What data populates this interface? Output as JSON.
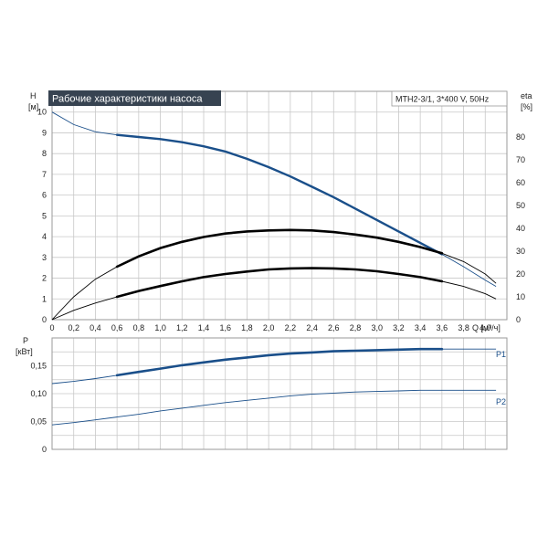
{
  "chart_data": [
    {
      "type": "line",
      "title": "Рабочие характеристики насоса",
      "model": "MTH2-3/1, 3*400 V, 50Hz",
      "ylabel_left": [
        "H",
        "[м]"
      ],
      "ylabel_right": [
        "eta",
        "[%]"
      ],
      "xlabel": "Q [м³/ч]",
      "xlim": [
        0,
        4.2
      ],
      "ylim": [
        0,
        11
      ],
      "y2lim": [
        0,
        100
      ],
      "x_ticks": [
        "0",
        "0,2",
        "0,4",
        "0,6",
        "0,8",
        "1,0",
        "1,2",
        "1,4",
        "1,6",
        "1,8",
        "2,0",
        "2,2",
        "2,4",
        "2,6",
        "2,8",
        "3,0",
        "3,2",
        "3,4",
        "3,6",
        "3,8",
        "4,0"
      ],
      "y_ticks": [
        "0",
        "1",
        "2",
        "3",
        "4",
        "5",
        "6",
        "7",
        "8",
        "9",
        "10"
      ],
      "y2_ticks": [
        "0",
        "10",
        "20",
        "30",
        "40",
        "50",
        "60",
        "70",
        "80"
      ],
      "series": [
        {
          "axis": "left",
          "style": "head",
          "color": "#1a4f8a",
          "bold_range": [
            0.6,
            3.6
          ],
          "x": [
            0,
            0.2,
            0.4,
            0.6,
            0.8,
            1.0,
            1.2,
            1.4,
            1.6,
            1.8,
            2.0,
            2.2,
            2.4,
            2.6,
            2.8,
            3.0,
            3.2,
            3.4,
            3.6,
            3.8,
            4.0,
            4.1
          ],
          "y": [
            10.0,
            9.4,
            9.05,
            8.9,
            8.8,
            8.7,
            8.55,
            8.35,
            8.1,
            7.75,
            7.35,
            6.9,
            6.4,
            5.9,
            5.35,
            4.8,
            4.25,
            3.7,
            3.15,
            2.55,
            1.9,
            1.6
          ]
        },
        {
          "axis": "left",
          "style": "black",
          "color": "#000000",
          "bold_range": [
            0.6,
            3.6
          ],
          "x": [
            0,
            0.2,
            0.4,
            0.6,
            0.8,
            1.0,
            1.2,
            1.4,
            1.6,
            1.8,
            2.0,
            2.2,
            2.4,
            2.6,
            2.8,
            3.0,
            3.2,
            3.4,
            3.6,
            3.8,
            4.0,
            4.1
          ],
          "y": [
            0.0,
            1.1,
            1.95,
            2.55,
            3.05,
            3.45,
            3.75,
            3.98,
            4.15,
            4.25,
            4.3,
            4.32,
            4.3,
            4.22,
            4.1,
            3.95,
            3.75,
            3.5,
            3.2,
            2.8,
            2.2,
            1.75
          ]
        },
        {
          "axis": "left",
          "style": "black",
          "color": "#000000",
          "bold_range": [
            0.6,
            3.6
          ],
          "x": [
            0,
            0.2,
            0.4,
            0.6,
            0.8,
            1.0,
            1.2,
            1.4,
            1.6,
            1.8,
            2.0,
            2.2,
            2.4,
            2.6,
            2.8,
            3.0,
            3.2,
            3.4,
            3.6,
            3.8,
            4.0,
            4.1
          ],
          "y": [
            0.0,
            0.45,
            0.8,
            1.1,
            1.38,
            1.62,
            1.85,
            2.05,
            2.2,
            2.32,
            2.42,
            2.47,
            2.48,
            2.47,
            2.42,
            2.33,
            2.2,
            2.05,
            1.85,
            1.6,
            1.25,
            1.0
          ]
        }
      ]
    },
    {
      "type": "line",
      "ylabel": [
        "P",
        "[кВт]"
      ],
      "xlim": [
        0,
        4.2
      ],
      "ylim": [
        0,
        0.2
      ],
      "y_ticks": [
        "0",
        "0,05",
        "0,10",
        "0,15"
      ],
      "y_tick_values": [
        0,
        0.05,
        0.1,
        0.15
      ],
      "series": [
        {
          "name": "P1",
          "color": "#1a4f8a",
          "bold_range": [
            0.6,
            3.6
          ],
          "x": [
            0,
            0.2,
            0.4,
            0.6,
            0.8,
            1.0,
            1.2,
            1.4,
            1.6,
            1.8,
            2.0,
            2.2,
            2.4,
            2.6,
            2.8,
            3.0,
            3.2,
            3.4,
            3.6,
            3.8,
            4.0,
            4.1
          ],
          "y": [
            0.118,
            0.122,
            0.127,
            0.133,
            0.139,
            0.145,
            0.151,
            0.156,
            0.161,
            0.165,
            0.169,
            0.172,
            0.174,
            0.176,
            0.177,
            0.178,
            0.179,
            0.18,
            0.18,
            0.18,
            0.18,
            0.18
          ]
        },
        {
          "name": "P2",
          "color": "#1a4f8a",
          "bold_range": [
            -1,
            -1
          ],
          "x": [
            0,
            0.2,
            0.4,
            0.6,
            0.8,
            1.0,
            1.2,
            1.4,
            1.6,
            1.8,
            2.0,
            2.2,
            2.4,
            2.6,
            2.8,
            3.0,
            3.2,
            3.4,
            3.6,
            3.8,
            4.0,
            4.1
          ],
          "y": [
            0.044,
            0.048,
            0.053,
            0.058,
            0.063,
            0.069,
            0.074,
            0.079,
            0.084,
            0.088,
            0.092,
            0.096,
            0.099,
            0.101,
            0.103,
            0.104,
            0.105,
            0.106,
            0.106,
            0.106,
            0.106,
            0.106
          ]
        }
      ]
    }
  ]
}
